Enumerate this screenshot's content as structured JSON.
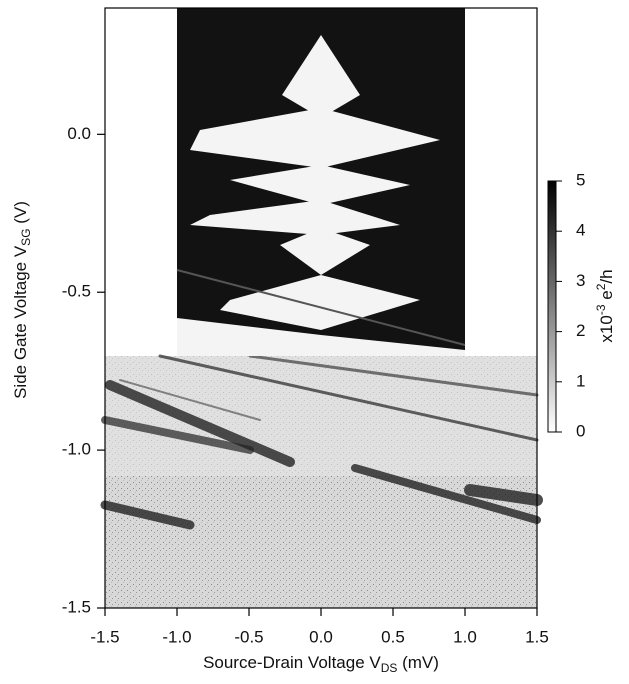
{
  "chart_data": {
    "type": "heatmap",
    "x_label": {
      "text": "Source-Drain Voltage V",
      "subscript": "DS",
      "suffix": " (mV)"
    },
    "y_label": {
      "text": "Side Gate Voltage V",
      "subscript": "SG",
      "suffix": " (V)"
    },
    "xlim": [
      -1.5,
      1.5
    ],
    "ylim": [
      -1.5,
      0.4
    ],
    "xticks": [
      -1.5,
      {
        "value": -1.0,
        "label": "-1.0"
      },
      -0.5,
      {
        "value": 0.0,
        "label": "0.0"
      },
      0.5,
      {
        "value": 1.0,
        "label": "1.0"
      },
      1.5
    ],
    "yticks": [
      {
        "value": 0.0,
        "label": "0.0"
      },
      -0.5,
      {
        "value": -1.0,
        "label": "-1.0"
      },
      -1.5
    ],
    "colorbar": {
      "lim": [
        0,
        5
      ],
      "ticks": [
        0,
        1,
        2,
        3,
        4,
        5
      ],
      "colors": [
        "#ffffff",
        "#000000"
      ],
      "label": {
        "prefix": "x10",
        "exp": "-3",
        "unit": " e",
        "unit_exp": "2",
        "suffix": "/h"
      }
    }
  }
}
